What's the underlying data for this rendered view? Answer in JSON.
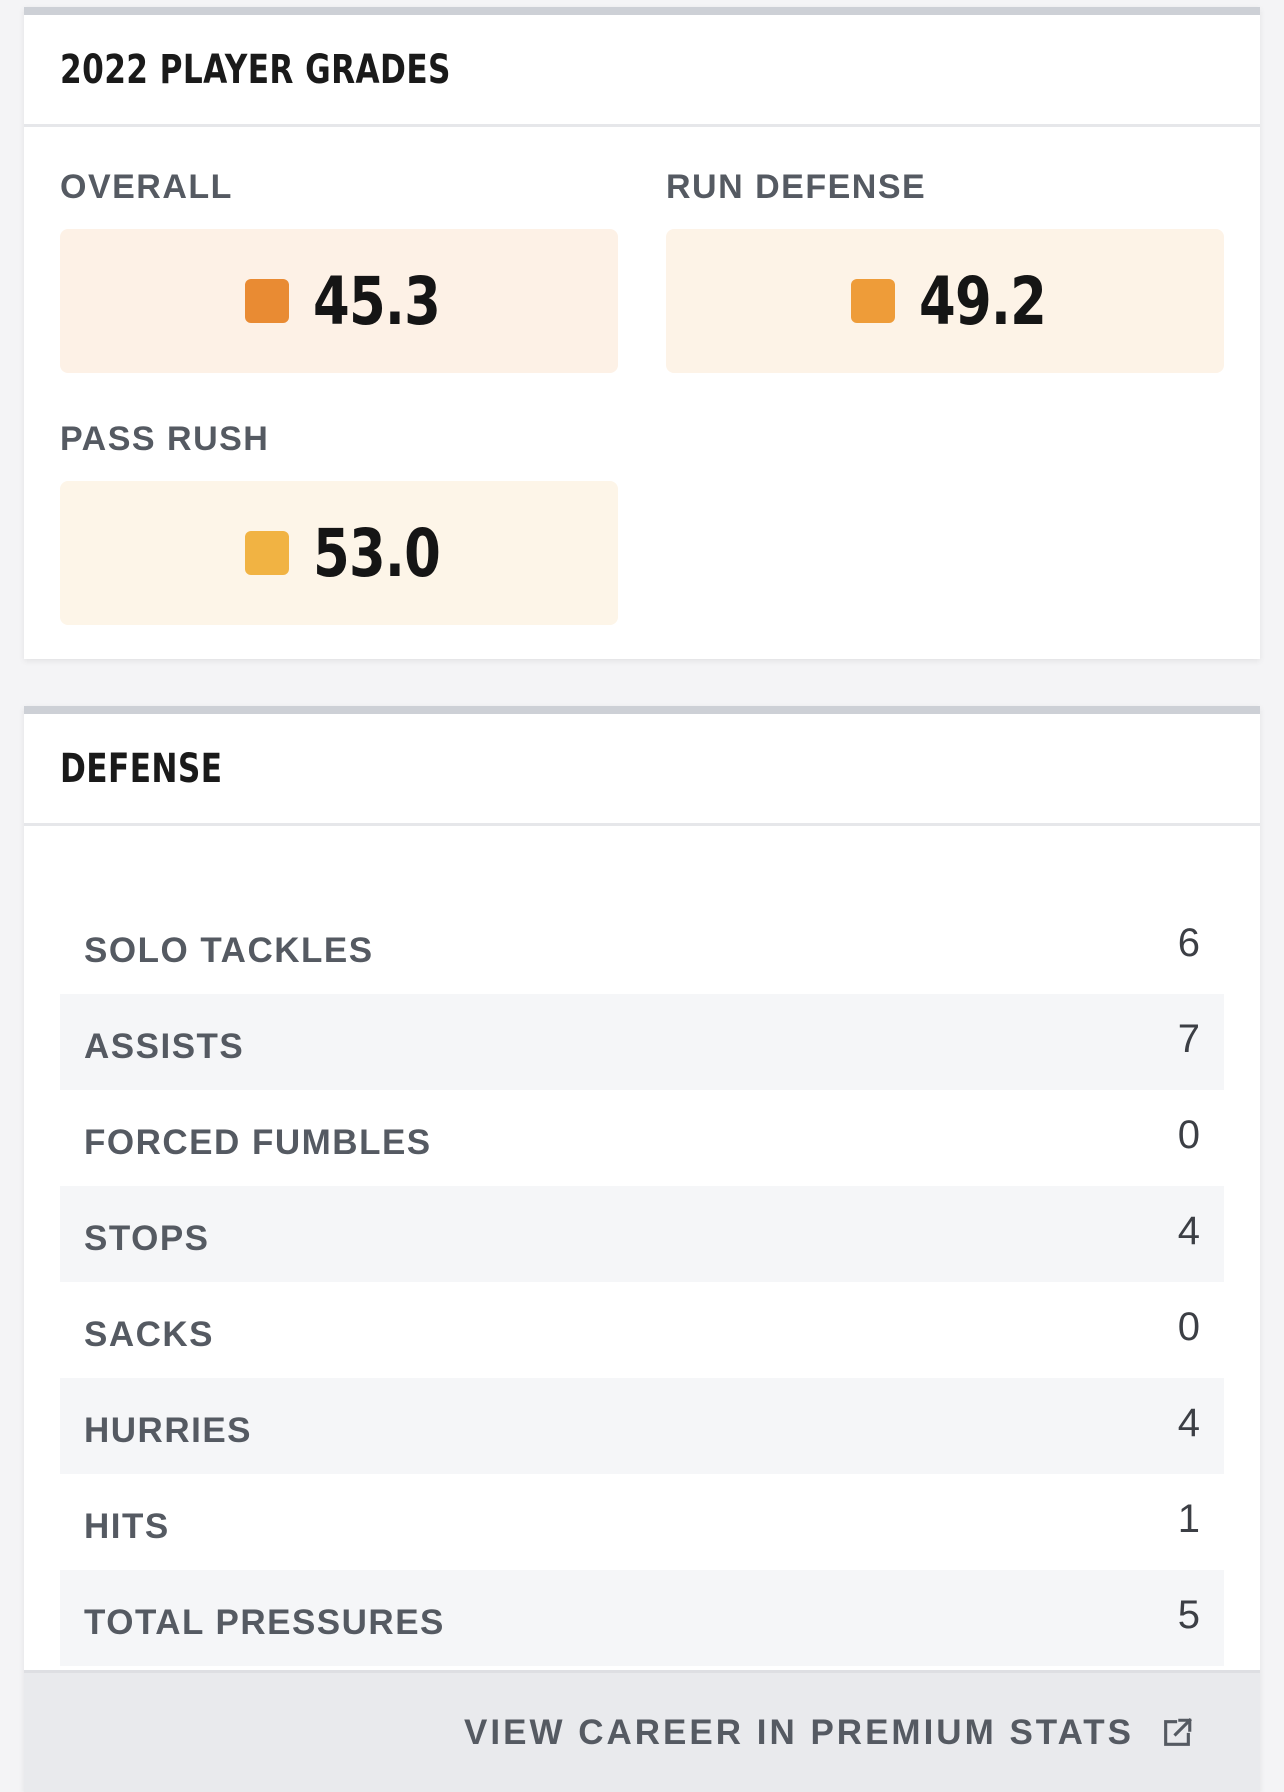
{
  "grades": {
    "title": "2022 PLAYER GRADES",
    "items": [
      {
        "label": "OVERALL",
        "value": "45.3",
        "swatch_color": "#e98b33",
        "box_color": "#fdf1e6"
      },
      {
        "label": "RUN DEFENSE",
        "value": "49.2",
        "swatch_color": "#ee9c39",
        "box_color": "#fdf3e7"
      },
      {
        "label": "PASS RUSH",
        "value": "53.0",
        "swatch_color": "#f1b343",
        "box_color": "#fdf5e8"
      }
    ]
  },
  "defense": {
    "title": "DEFENSE",
    "stats": [
      {
        "label": "SOLO TACKLES",
        "value": "6"
      },
      {
        "label": "ASSISTS",
        "value": "7"
      },
      {
        "label": "FORCED FUMBLES",
        "value": "0"
      },
      {
        "label": "STOPS",
        "value": "4"
      },
      {
        "label": "SACKS",
        "value": "0"
      },
      {
        "label": "HURRIES",
        "value": "4"
      },
      {
        "label": "HITS",
        "value": "1"
      },
      {
        "label": "TOTAL PRESSURES",
        "value": "5"
      }
    ],
    "footer_link_label": "VIEW CAREER IN PREMIUM STATS",
    "footer_icon": "external-link-icon"
  }
}
